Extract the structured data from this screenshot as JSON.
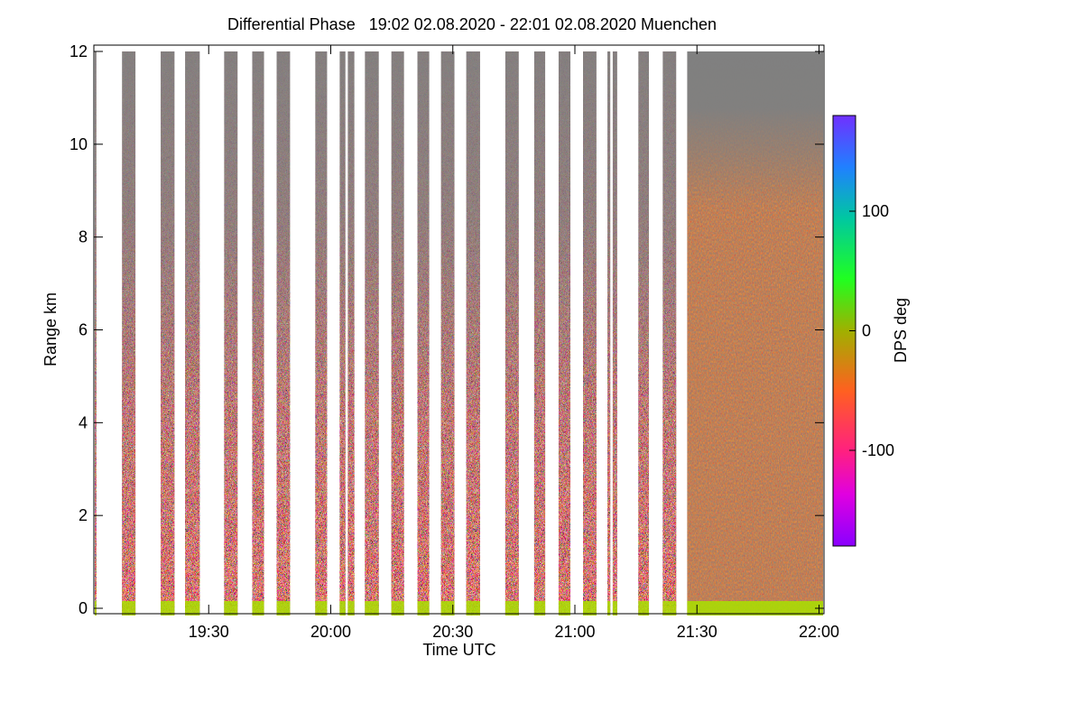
{
  "chart_data": {
    "type": "time-range",
    "title": "Differential Phase   19:02 02.08.2020 - 22:01 02.08.2020 Muenchen",
    "xlabel": "Time UTC",
    "ylabel": "Range km",
    "xlim": [
      1142,
      1321
    ],
    "xticks": [
      {
        "value": 1170,
        "label": "19:30"
      },
      {
        "value": 1200,
        "label": "20:00"
      },
      {
        "value": 1230,
        "label": "20:30"
      },
      {
        "value": 1260,
        "label": "21:00"
      },
      {
        "value": 1290,
        "label": "21:30"
      },
      {
        "value": 1320,
        "label": "22:00"
      }
    ],
    "ylim": [
      0,
      12
    ],
    "yticks": [
      0,
      2,
      4,
      6,
      8,
      10,
      12
    ],
    "scans": [
      [
        1142,
        1142.4
      ],
      [
        1148.7,
        1152
      ],
      [
        1158.2,
        1161.6
      ],
      [
        1164.2,
        1167.8
      ],
      [
        1173.8,
        1177.1
      ],
      [
        1180.7,
        1183.6
      ],
      [
        1186.7,
        1190
      ],
      [
        1196.2,
        1199.1
      ],
      [
        1202.2,
        1203.6
      ],
      [
        1204.2,
        1205.8
      ],
      [
        1208.4,
        1211.8
      ],
      [
        1214.9,
        1218
      ],
      [
        1221.3,
        1224.2
      ],
      [
        1227.1,
        1230.4
      ],
      [
        1233.3,
        1236.7
      ],
      [
        1242.9,
        1246.2
      ],
      [
        1250,
        1252.7
      ],
      [
        1256,
        1258.9
      ],
      [
        1262,
        1265.3
      ],
      [
        1268,
        1268.7
      ],
      [
        1269.3,
        1270.4
      ],
      [
        1275.6,
        1278.2
      ],
      [
        1281.6,
        1284.9
      ],
      [
        1287.6,
        1321
      ]
    ],
    "colorbar": {
      "label": "DPS deg",
      "lim": [
        -180,
        180
      ],
      "ticks": [
        -100,
        0,
        100
      ]
    }
  }
}
